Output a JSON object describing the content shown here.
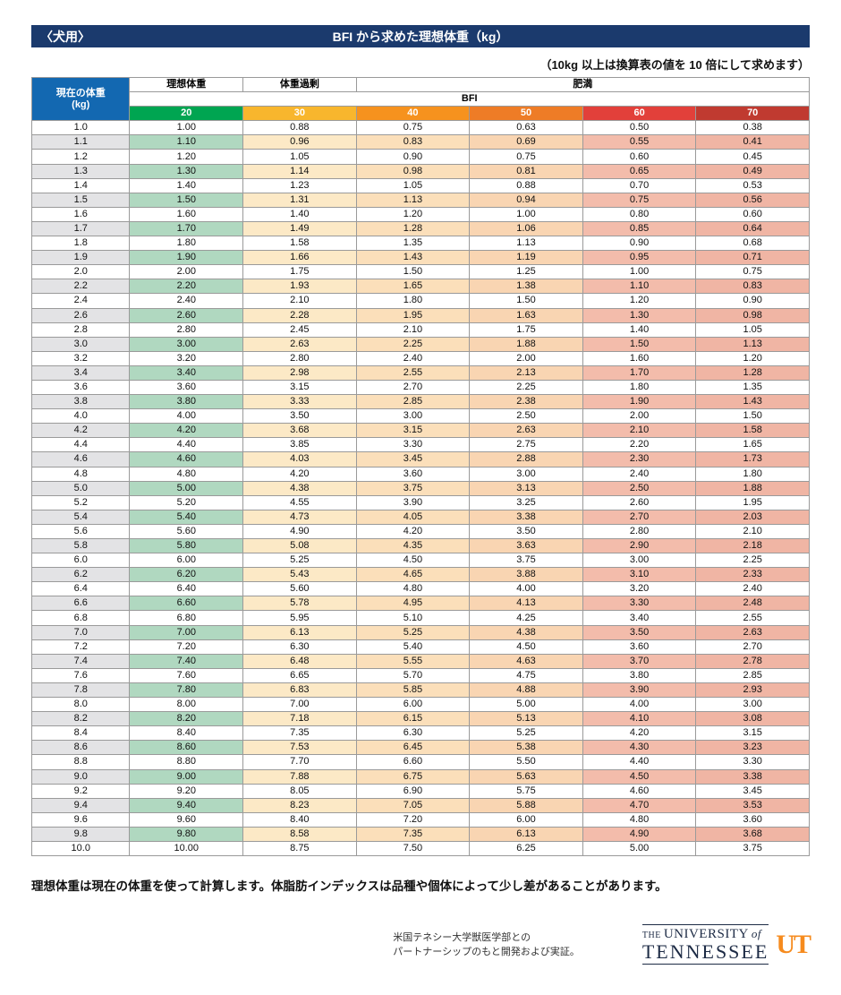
{
  "header": {
    "left_label": "〈犬用〉",
    "title": "BFI から求めた理想体重（kg）"
  },
  "note": "（10kg 以上は換算表の値を 10 倍にして求めます）",
  "table": {
    "col_current_line1": "現在の体重",
    "col_current_line2": "(kg)",
    "group_ideal": "理想体重",
    "group_over": "体重過剰",
    "group_obese": "肥満",
    "bfi_label": "BFI",
    "bfi_values": [
      "20",
      "30",
      "40",
      "50",
      "60",
      "70"
    ],
    "rows": [
      [
        "1.0",
        "1.00",
        "0.88",
        "0.75",
        "0.63",
        "0.50",
        "0.38"
      ],
      [
        "1.1",
        "1.10",
        "0.96",
        "0.83",
        "0.69",
        "0.55",
        "0.41"
      ],
      [
        "1.2",
        "1.20",
        "1.05",
        "0.90",
        "0.75",
        "0.60",
        "0.45"
      ],
      [
        "1.3",
        "1.30",
        "1.14",
        "0.98",
        "0.81",
        "0.65",
        "0.49"
      ],
      [
        "1.4",
        "1.40",
        "1.23",
        "1.05",
        "0.88",
        "0.70",
        "0.53"
      ],
      [
        "1.5",
        "1.50",
        "1.31",
        "1.13",
        "0.94",
        "0.75",
        "0.56"
      ],
      [
        "1.6",
        "1.60",
        "1.40",
        "1.20",
        "1.00",
        "0.80",
        "0.60"
      ],
      [
        "1.7",
        "1.70",
        "1.49",
        "1.28",
        "1.06",
        "0.85",
        "0.64"
      ],
      [
        "1.8",
        "1.80",
        "1.58",
        "1.35",
        "1.13",
        "0.90",
        "0.68"
      ],
      [
        "1.9",
        "1.90",
        "1.66",
        "1.43",
        "1.19",
        "0.95",
        "0.71"
      ],
      [
        "2.0",
        "2.00",
        "1.75",
        "1.50",
        "1.25",
        "1.00",
        "0.75"
      ],
      [
        "2.2",
        "2.20",
        "1.93",
        "1.65",
        "1.38",
        "1.10",
        "0.83"
      ],
      [
        "2.4",
        "2.40",
        "2.10",
        "1.80",
        "1.50",
        "1.20",
        "0.90"
      ],
      [
        "2.6",
        "2.60",
        "2.28",
        "1.95",
        "1.63",
        "1.30",
        "0.98"
      ],
      [
        "2.8",
        "2.80",
        "2.45",
        "2.10",
        "1.75",
        "1.40",
        "1.05"
      ],
      [
        "3.0",
        "3.00",
        "2.63",
        "2.25",
        "1.88",
        "1.50",
        "1.13"
      ],
      [
        "3.2",
        "3.20",
        "2.80",
        "2.40",
        "2.00",
        "1.60",
        "1.20"
      ],
      [
        "3.4",
        "3.40",
        "2.98",
        "2.55",
        "2.13",
        "1.70",
        "1.28"
      ],
      [
        "3.6",
        "3.60",
        "3.15",
        "2.70",
        "2.25",
        "1.80",
        "1.35"
      ],
      [
        "3.8",
        "3.80",
        "3.33",
        "2.85",
        "2.38",
        "1.90",
        "1.43"
      ],
      [
        "4.0",
        "4.00",
        "3.50",
        "3.00",
        "2.50",
        "2.00",
        "1.50"
      ],
      [
        "4.2",
        "4.20",
        "3.68",
        "3.15",
        "2.63",
        "2.10",
        "1.58"
      ],
      [
        "4.4",
        "4.40",
        "3.85",
        "3.30",
        "2.75",
        "2.20",
        "1.65"
      ],
      [
        "4.6",
        "4.60",
        "4.03",
        "3.45",
        "2.88",
        "2.30",
        "1.73"
      ],
      [
        "4.8",
        "4.80",
        "4.20",
        "3.60",
        "3.00",
        "2.40",
        "1.80"
      ],
      [
        "5.0",
        "5.00",
        "4.38",
        "3.75",
        "3.13",
        "2.50",
        "1.88"
      ],
      [
        "5.2",
        "5.20",
        "4.55",
        "3.90",
        "3.25",
        "2.60",
        "1.95"
      ],
      [
        "5.4",
        "5.40",
        "4.73",
        "4.05",
        "3.38",
        "2.70",
        "2.03"
      ],
      [
        "5.6",
        "5.60",
        "4.90",
        "4.20",
        "3.50",
        "2.80",
        "2.10"
      ],
      [
        "5.8",
        "5.80",
        "5.08",
        "4.35",
        "3.63",
        "2.90",
        "2.18"
      ],
      [
        "6.0",
        "6.00",
        "5.25",
        "4.50",
        "3.75",
        "3.00",
        "2.25"
      ],
      [
        "6.2",
        "6.20",
        "5.43",
        "4.65",
        "3.88",
        "3.10",
        "2.33"
      ],
      [
        "6.4",
        "6.40",
        "5.60",
        "4.80",
        "4.00",
        "3.20",
        "2.40"
      ],
      [
        "6.6",
        "6.60",
        "5.78",
        "4.95",
        "4.13",
        "3.30",
        "2.48"
      ],
      [
        "6.8",
        "6.80",
        "5.95",
        "5.10",
        "4.25",
        "3.40",
        "2.55"
      ],
      [
        "7.0",
        "7.00",
        "6.13",
        "5.25",
        "4.38",
        "3.50",
        "2.63"
      ],
      [
        "7.2",
        "7.20",
        "6.30",
        "5.40",
        "4.50",
        "3.60",
        "2.70"
      ],
      [
        "7.4",
        "7.40",
        "6.48",
        "5.55",
        "4.63",
        "3.70",
        "2.78"
      ],
      [
        "7.6",
        "7.60",
        "6.65",
        "5.70",
        "4.75",
        "3.80",
        "2.85"
      ],
      [
        "7.8",
        "7.80",
        "6.83",
        "5.85",
        "4.88",
        "3.90",
        "2.93"
      ],
      [
        "8.0",
        "8.00",
        "7.00",
        "6.00",
        "5.00",
        "4.00",
        "3.00"
      ],
      [
        "8.2",
        "8.20",
        "7.18",
        "6.15",
        "5.13",
        "4.10",
        "3.08"
      ],
      [
        "8.4",
        "8.40",
        "7.35",
        "6.30",
        "5.25",
        "4.20",
        "3.15"
      ],
      [
        "8.6",
        "8.60",
        "7.53",
        "6.45",
        "5.38",
        "4.30",
        "3.23"
      ],
      [
        "8.8",
        "8.80",
        "7.70",
        "6.60",
        "5.50",
        "4.40",
        "3.30"
      ],
      [
        "9.0",
        "9.00",
        "7.88",
        "6.75",
        "5.63",
        "4.50",
        "3.38"
      ],
      [
        "9.2",
        "9.20",
        "8.05",
        "6.90",
        "5.75",
        "4.60",
        "3.45"
      ],
      [
        "9.4",
        "9.40",
        "8.23",
        "7.05",
        "5.88",
        "4.70",
        "3.53"
      ],
      [
        "9.6",
        "9.60",
        "8.40",
        "7.20",
        "6.00",
        "4.80",
        "3.60"
      ],
      [
        "9.8",
        "9.80",
        "8.58",
        "7.35",
        "6.13",
        "4.90",
        "3.68"
      ],
      [
        "10.0",
        "10.00",
        "8.75",
        "7.50",
        "6.25",
        "5.00",
        "3.75"
      ]
    ]
  },
  "colors": {
    "title_bar": "#1b3a6d",
    "current_header": "#1368b1",
    "bfi_headers": [
      "#00a551",
      "#f8b62d",
      "#f6921e",
      "#ee7c26",
      "#e2403a",
      "#c03a30"
    ],
    "row_tints": [
      "#e3e3e5",
      "#b0d8c0",
      "#fce9c6",
      "#fbdfba",
      "#f9d5b2",
      "#f3bcab",
      "#f0b5a4"
    ]
  },
  "footer_note": "理想体重は現在の体重を使って計算します。体脂肪インデックスは品種や個体によって少し差があることがあります。",
  "credit": {
    "line1": "米国テネシー大学獣医学部との",
    "line2": "パートナーシップのもと開発および実証。"
  },
  "logo": {
    "the": "THE",
    "university": "UNIVERSITY",
    "of": "of",
    "tennessee": "TENNESSEE",
    "mark": "UT"
  }
}
